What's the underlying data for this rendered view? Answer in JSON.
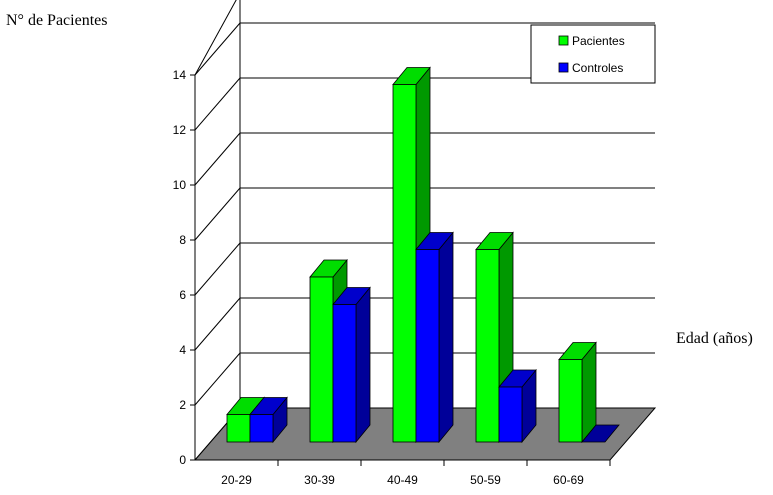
{
  "chart_data": {
    "type": "bar",
    "title": "",
    "ylabel": "N° de Pacientes",
    "xlabel": "Edad (años)",
    "categories": [
      "20-29",
      "30-39",
      "40-49",
      "50-59",
      "60-69"
    ],
    "series": [
      {
        "name": "Pacientes",
        "values": [
          1,
          6,
          13,
          7,
          3
        ]
      },
      {
        "name": "Controles",
        "values": [
          1,
          5,
          7,
          2,
          0
        ]
      }
    ],
    "ylim": [
      0,
      14
    ],
    "yticks": [
      "0",
      "2",
      "4",
      "6",
      "8",
      "10",
      "12",
      "14"
    ],
    "grid": true,
    "legend": "top-right",
    "three_d": true
  },
  "colors": {
    "Pacientes": {
      "front": "#00ff00",
      "side": "#009900",
      "top": "#00dd00"
    },
    "Controles": {
      "front": "#0000ff",
      "side": "#000099",
      "top": "#0000cc"
    },
    "floor": "#808080"
  }
}
